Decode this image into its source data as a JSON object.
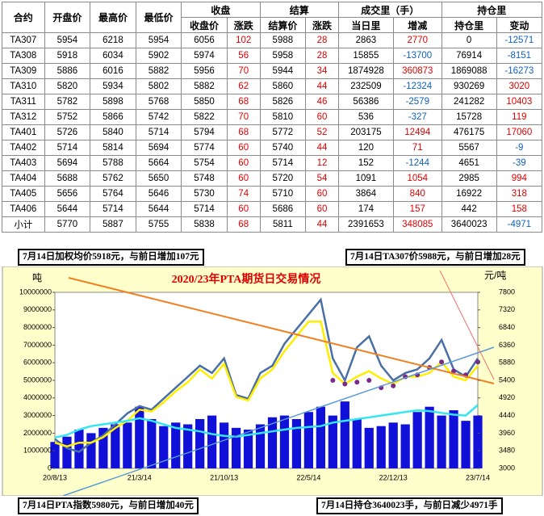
{
  "table": {
    "header_top": [
      "合约",
      "开盘价",
      "最高价",
      "最低价",
      "收盘",
      "结算",
      "成交里（手）",
      "持仓里"
    ],
    "header_sub": [
      "收盘价",
      "涨跌",
      "结算价",
      "涨跌",
      "当日里",
      "增减",
      "持仓里",
      "变动"
    ],
    "rows": [
      [
        "TA307",
        5954,
        6218,
        5954,
        6056,
        102,
        5988,
        28,
        2863,
        2770,
        0,
        -12571
      ],
      [
        "TA308",
        5918,
        6034,
        5902,
        5974,
        56,
        5958,
        28,
        15855,
        -13700,
        76914,
        -8151
      ],
      [
        "TA309",
        5886,
        6016,
        5882,
        5956,
        70,
        5944,
        34,
        1874928,
        360873,
        1869088,
        -16273
      ],
      [
        "TA310",
        5820,
        5934,
        5802,
        5882,
        62,
        5860,
        44,
        232509,
        -12324,
        930269,
        3020
      ],
      [
        "TA311",
        5782,
        5898,
        5768,
        5850,
        68,
        5826,
        46,
        56386,
        -2579,
        241282,
        10403
      ],
      [
        "TA312",
        5752,
        5866,
        5742,
        5822,
        70,
        5810,
        60,
        536,
        -327,
        15728,
        119
      ],
      [
        "TA401",
        5726,
        5840,
        5714,
        5794,
        68,
        5772,
        52,
        203175,
        12494,
        476175,
        17060
      ],
      [
        "TA402",
        5714,
        5814,
        5694,
        5774,
        60,
        5740,
        44,
        120,
        71,
        5567,
        -9
      ],
      [
        "TA403",
        5694,
        5788,
        5664,
        5754,
        60,
        5714,
        12,
        152,
        -1244,
        4651,
        -39
      ],
      [
        "TA404",
        5688,
        5762,
        5650,
        5748,
        60,
        5720,
        54,
        1091,
        1054,
        2985,
        994
      ],
      [
        "TA405",
        5656,
        5764,
        5646,
        5730,
        74,
        5710,
        60,
        3864,
        840,
        16922,
        318
      ],
      [
        "TA406",
        5644,
        5714,
        5644,
        5714,
        60,
        5686,
        60,
        174,
        157,
        442,
        158
      ],
      [
        "小计",
        5770,
        5887,
        5755,
        5838,
        68,
        5811,
        44,
        2391653,
        348085,
        3640023,
        -4971
      ]
    ]
  },
  "notes": [
    "7月14日加权均价5918元，与前日增加107元",
    "7月14日TA307价5988元，与前日增加28元",
    "7月14日PTA指数5980元，与前日增加40元",
    "7月14日持仓3640023手，与前日减少4971手"
  ],
  "chart_data": {
    "type": "combo",
    "title": "2020/23年PTA期货日交易情况",
    "y_label": "吨",
    "y2_label": "元/吨",
    "categories": [
      "20/8/13",
      null,
      null,
      null,
      null,
      null,
      null,
      "21/3/14",
      null,
      null,
      null,
      null,
      null,
      null,
      "21/10/13",
      null,
      null,
      null,
      null,
      null,
      null,
      "22/5/14",
      null,
      null,
      null,
      null,
      null,
      null,
      "22/12/13",
      null,
      null,
      null,
      null,
      null,
      null,
      "23/7/14"
    ],
    "ylim": [
      0,
      10000000
    ],
    "yticks": [
      0,
      1000000,
      2000000,
      3000000,
      4000000,
      5000000,
      6000000,
      7000000,
      8000000,
      9000000,
      10000000
    ],
    "y2lim": [
      3000,
      7800
    ],
    "y2ticks": [
      3000,
      3480,
      3960,
      4440,
      4920,
      5400,
      5880,
      6360,
      6840,
      7320,
      7800
    ],
    "series": [
      {
        "kind": "bar",
        "color": "#1010d8",
        "values": [
          1500000,
          1800000,
          2200000,
          2000000,
          2300000,
          2500000,
          2600000,
          3500000,
          2800000,
          2400000,
          2600000,
          2500000,
          2800000,
          3000000,
          2600000,
          2300000,
          2200000,
          2500000,
          2900000,
          3000000,
          2800000,
          3200000,
          3500000,
          3000000,
          3800000,
          2800000,
          2300000,
          2400000,
          2600000,
          2500000,
          3200000,
          3500000,
          3000000,
          3300000,
          2700000,
          3000000
        ]
      },
      {
        "kind": "line",
        "color": "#4a6fa5",
        "axis": "y2",
        "values": [
          3800,
          3550,
          3450,
          3700,
          3900,
          4200,
          4500,
          4700,
          4600,
          4900,
          5200,
          5500,
          5800,
          5600,
          6000,
          5000,
          4900,
          5600,
          5800,
          6400,
          6800,
          7200,
          7600,
          6000,
          5400,
          6300,
          6600,
          5800,
          5400,
          5600,
          5700,
          6000,
          6500,
          5700,
          5500,
          6000
        ]
      },
      {
        "kind": "line",
        "color": "#ffee00",
        "axis": "y2",
        "values": [
          3700,
          3600,
          3700,
          3700,
          3850,
          4100,
          4300,
          4600,
          4550,
          4800,
          5100,
          5350,
          5700,
          5450,
          5850,
          4950,
          4850,
          5450,
          5700,
          6200,
          6600,
          7000,
          7000,
          5600,
          5300,
          5500,
          5650,
          5450,
          5300,
          5500,
          5500,
          5600,
          5900,
          5500,
          5400,
          5800
        ]
      },
      {
        "kind": "dots",
        "color": "#7a2a8a",
        "axis": "y2",
        "values": [
          null,
          null,
          null,
          null,
          null,
          null,
          null,
          null,
          null,
          null,
          null,
          null,
          null,
          null,
          null,
          null,
          null,
          null,
          null,
          null,
          null,
          null,
          null,
          5400,
          5300,
          5350,
          5400,
          5200,
          5250,
          5500,
          5550,
          5750,
          5900,
          5650,
          5550,
          5900
        ]
      },
      {
        "kind": "line",
        "color": "#33e6f0",
        "values": [
          1750000,
          1900000,
          2200000,
          2400000,
          2500000,
          2600000,
          2700000,
          2850000,
          2700000,
          2500000,
          2300000,
          2200000,
          2100000,
          1950000,
          1850000,
          1800000,
          1900000,
          2000000,
          2100000,
          2200000,
          2300000,
          2350000,
          2400000,
          2600000,
          2700000,
          2800000,
          2900000,
          3000000,
          3100000,
          3200000,
          3300000,
          3250000,
          3150000,
          3050000,
          3000000,
          3600000
        ]
      }
    ]
  }
}
